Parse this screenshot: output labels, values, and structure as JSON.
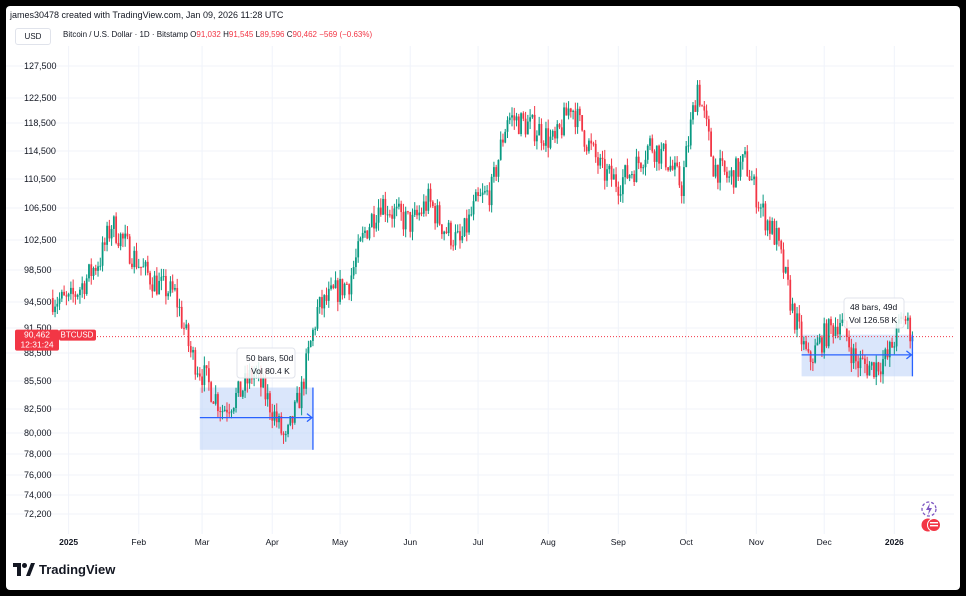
{
  "header": {
    "credit": "james30478 created with TradingView.com, Jan 09, 2026 11:28 UTC",
    "currency": "USD"
  },
  "legend": {
    "symbol": "Bitcoin / U.S. Dollar · 1D · Bitstamp",
    "o_label": "O",
    "o": "91,032",
    "h_label": "H",
    "h": "91,545",
    "l_label": "L",
    "l": "89,596",
    "c_label": "C",
    "c": "90,462",
    "change": "−569 (−0.63%)"
  },
  "price_tag": {
    "price": "90,462",
    "symbol": "BTCUSD",
    "countdown": "12:31:24",
    "color": "#f23645"
  },
  "measure_1": {
    "line1": "50 bars, 50d",
    "line2": "Vol 80.4 K"
  },
  "measure_2": {
    "line1": "48 bars, 49d",
    "line2": "Vol 126.58 K"
  },
  "footer": {
    "brand": "TradingView"
  },
  "icons": [
    "lightning-icon",
    "flag-icon",
    "tradingview-logo-icon"
  ],
  "colors": {
    "up": "#089981",
    "down": "#f23645",
    "measure_fill": "#bbd1f8",
    "measure_line": "#2962ff"
  },
  "chart_data": {
    "type": "candlestick",
    "title": "Bitcoin / U.S. Dollar · 1D · Bitstamp",
    "xlabel": "",
    "ylabel": "",
    "x_ticks": [
      "2025",
      "Feb",
      "Mar",
      "Apr",
      "May",
      "Jun",
      "Jul",
      "Aug",
      "Sep",
      "Oct",
      "Nov",
      "Dec",
      "2026"
    ],
    "y_ticks": [
      72200,
      74000,
      76000,
      78000,
      80000,
      82500,
      85500,
      88500,
      91500,
      94500,
      98500,
      102500,
      106500,
      110500,
      114500,
      118500,
      122500,
      127500
    ],
    "ylim": [
      70000,
      130000
    ],
    "x_range": [
      "2024-12-22",
      "2026-01-15"
    ],
    "grid": true,
    "last_price": 90462,
    "series": [
      {
        "date": "2024-12-25",
        "close": 95000
      },
      {
        "date": "2025-01-01",
        "close": 94500
      },
      {
        "date": "2025-01-08",
        "close": 97000
      },
      {
        "date": "2025-01-15",
        "close": 100000
      },
      {
        "date": "2025-01-20",
        "close": 104500
      },
      {
        "date": "2025-01-27",
        "close": 101500
      },
      {
        "date": "2025-02-03",
        "close": 98500
      },
      {
        "date": "2025-02-10",
        "close": 96500
      },
      {
        "date": "2025-02-17",
        "close": 95500
      },
      {
        "date": "2025-02-24",
        "close": 88500
      },
      {
        "date": "2025-03-03",
        "close": 85500
      },
      {
        "date": "2025-03-10",
        "close": 82500
      },
      {
        "date": "2025-03-17",
        "close": 84000
      },
      {
        "date": "2025-03-24",
        "close": 86500
      },
      {
        "date": "2025-03-31",
        "close": 83000
      },
      {
        "date": "2025-04-07",
        "close": 79000
      },
      {
        "date": "2025-04-14",
        "close": 84500
      },
      {
        "date": "2025-04-21",
        "close": 93500
      },
      {
        "date": "2025-04-28",
        "close": 95500
      },
      {
        "date": "2025-05-05",
        "close": 97000
      },
      {
        "date": "2025-05-12",
        "close": 103500
      },
      {
        "date": "2025-05-19",
        "close": 107500
      },
      {
        "date": "2025-05-26",
        "close": 105500
      },
      {
        "date": "2025-06-02",
        "close": 104500
      },
      {
        "date": "2025-06-09",
        "close": 107500
      },
      {
        "date": "2025-06-16",
        "close": 104000
      },
      {
        "date": "2025-06-23",
        "close": 102000
      },
      {
        "date": "2025-06-30",
        "close": 107000
      },
      {
        "date": "2025-07-07",
        "close": 109000
      },
      {
        "date": "2025-07-14",
        "close": 119500
      },
      {
        "date": "2025-07-21",
        "close": 118500
      },
      {
        "date": "2025-07-28",
        "close": 117500
      },
      {
        "date": "2025-08-04",
        "close": 115500
      },
      {
        "date": "2025-08-11",
        "close": 121500
      },
      {
        "date": "2025-08-18",
        "close": 116000
      },
      {
        "date": "2025-08-25",
        "close": 111500
      },
      {
        "date": "2025-09-01",
        "close": 110000
      },
      {
        "date": "2025-09-08",
        "close": 112000
      },
      {
        "date": "2025-09-15",
        "close": 115500
      },
      {
        "date": "2025-09-22",
        "close": 113500
      },
      {
        "date": "2025-09-29",
        "close": 109500
      },
      {
        "date": "2025-10-06",
        "close": 124500
      },
      {
        "date": "2025-10-13",
        "close": 112500
      },
      {
        "date": "2025-10-20",
        "close": 110500
      },
      {
        "date": "2025-10-27",
        "close": 113000
      },
      {
        "date": "2025-11-03",
        "close": 106500
      },
      {
        "date": "2025-11-10",
        "close": 102500
      },
      {
        "date": "2025-11-17",
        "close": 93500
      },
      {
        "date": "2025-11-24",
        "close": 87500
      },
      {
        "date": "2025-12-01",
        "close": 90500
      },
      {
        "date": "2025-12-08",
        "close": 92500
      },
      {
        "date": "2025-12-15",
        "close": 87500
      },
      {
        "date": "2025-12-22",
        "close": 87000
      },
      {
        "date": "2025-12-29",
        "close": 88000
      },
      {
        "date": "2026-01-05",
        "close": 93000
      },
      {
        "date": "2026-01-09",
        "close": 90462
      }
    ]
  }
}
